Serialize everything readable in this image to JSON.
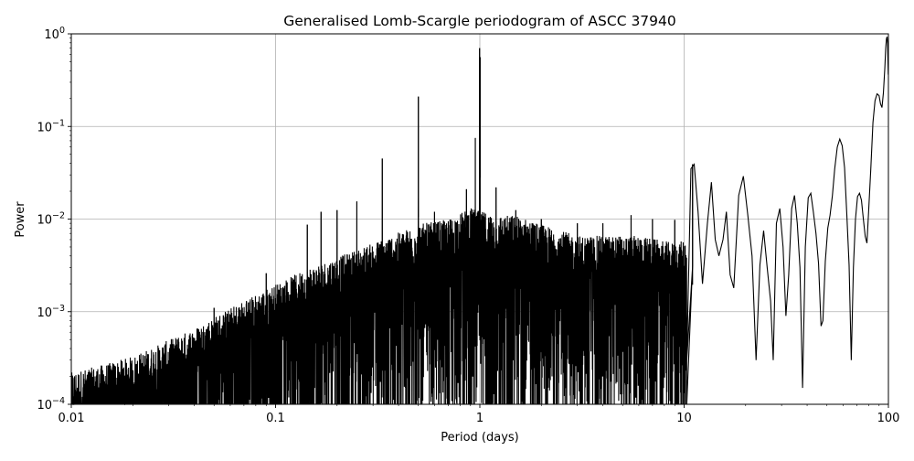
{
  "chart_data": {
    "type": "line",
    "title": "Generalised Lomb-Scargle periodogram of ASCC 37940",
    "xlabel": "Period (days)",
    "ylabel": "Power",
    "xscale": "log",
    "yscale": "log",
    "xlim": [
      0.01,
      100
    ],
    "ylim": [
      0.0001,
      1
    ],
    "grid": true,
    "x_ticks": [
      {
        "value": 0.01,
        "label": "0.01"
      },
      {
        "value": 0.1,
        "label": "0.1"
      },
      {
        "value": 1,
        "label": "1"
      },
      {
        "value": 10,
        "label": "10"
      },
      {
        "value": 100,
        "label": "100"
      }
    ],
    "y_ticks": [
      {
        "value": 0.0001,
        "base": "10",
        "exp": "−4"
      },
      {
        "value": 0.001,
        "base": "10",
        "exp": "−3"
      },
      {
        "value": 0.01,
        "base": "10",
        "exp": "−2"
      },
      {
        "value": 0.1,
        "base": "10",
        "exp": "−1"
      },
      {
        "value": 1,
        "base": "10",
        "exp": "0"
      }
    ],
    "line_color": "#000000",
    "envelope": [
      [
        0.01,
        0.0002
      ],
      [
        0.015,
        0.00025
      ],
      [
        0.02,
        0.0003
      ],
      [
        0.03,
        0.00045
      ],
      [
        0.04,
        0.0006
      ],
      [
        0.05,
        0.0008
      ],
      [
        0.07,
        0.0012
      ],
      [
        0.1,
        0.0018
      ],
      [
        0.15,
        0.0028
      ],
      [
        0.2,
        0.0035
      ],
      [
        0.3,
        0.005
      ],
      [
        0.5,
        0.008
      ],
      [
        0.7,
        0.009
      ],
      [
        0.9,
        0.012
      ],
      [
        1.2,
        0.01
      ],
      [
        1.5,
        0.01
      ],
      [
        2,
        0.008
      ],
      [
        3,
        0.006
      ],
      [
        4,
        0.006
      ],
      [
        6,
        0.006
      ],
      [
        9,
        0.005
      ],
      [
        12,
        0.006
      ],
      [
        20,
        0.005
      ]
    ],
    "peaks": [
      [
        0.0253,
        0.0002
      ],
      [
        0.0333,
        0.0005
      ],
      [
        0.0357,
        0.00052
      ],
      [
        0.045,
        0.0006
      ],
      [
        0.05,
        0.0011
      ],
      [
        0.058,
        0.00095
      ],
      [
        0.066,
        0.00108
      ],
      [
        0.072,
        0.0013
      ],
      [
        0.08,
        0.0011
      ],
      [
        0.0833,
        0.0012
      ],
      [
        0.09,
        0.0026
      ],
      [
        0.1,
        0.0014
      ],
      [
        0.111,
        0.0015
      ],
      [
        0.125,
        0.0018
      ],
      [
        0.143,
        0.0087
      ],
      [
        0.167,
        0.012
      ],
      [
        0.2,
        0.0125
      ],
      [
        0.25,
        0.0155
      ],
      [
        0.333,
        0.045
      ],
      [
        0.5,
        0.21
      ],
      [
        0.6,
        0.012
      ],
      [
        0.86,
        0.021
      ],
      [
        0.95,
        0.075
      ],
      [
        0.997,
        0.7
      ],
      [
        1.0,
        0.33
      ],
      [
        1.003,
        0.56
      ],
      [
        1.2,
        0.022
      ],
      [
        1.5,
        0.0125
      ],
      [
        2,
        0.01
      ],
      [
        3,
        0.009
      ],
      [
        4,
        0.009
      ],
      [
        5.5,
        0.011
      ],
      [
        7,
        0.01
      ],
      [
        9,
        0.0098
      ],
      [
        11,
        0.039
      ]
    ],
    "long_period_curve": [
      [
        10.3,
        0.0003
      ],
      [
        10.8,
        0.035
      ],
      [
        11.2,
        0.039
      ],
      [
        11.7,
        0.012
      ],
      [
        12.3,
        0.002
      ],
      [
        13.0,
        0.009
      ],
      [
        13.6,
        0.025
      ],
      [
        14.2,
        0.006
      ],
      [
        14.8,
        0.004
      ],
      [
        15.5,
        0.006
      ],
      [
        16.1,
        0.012
      ],
      [
        16.8,
        0.0025
      ],
      [
        17.5,
        0.0018
      ],
      [
        18.5,
        0.018
      ],
      [
        19.5,
        0.029
      ],
      [
        20.5,
        0.011
      ],
      [
        21.5,
        0.004
      ],
      [
        22.5,
        0.0003
      ],
      [
        23.5,
        0.0032
      ],
      [
        24.5,
        0.0075
      ],
      [
        25.5,
        0.003
      ],
      [
        26.5,
        0.0013
      ],
      [
        27.3,
        0.0003
      ],
      [
        28.3,
        0.009
      ],
      [
        29.4,
        0.013
      ],
      [
        30.5,
        0.005
      ],
      [
        31.5,
        0.0009
      ],
      [
        32.5,
        0.0025
      ],
      [
        33.6,
        0.013
      ],
      [
        34.7,
        0.018
      ],
      [
        35.8,
        0.009
      ],
      [
        36.9,
        0.003
      ],
      [
        38.0,
        0.00015
      ],
      [
        39.2,
        0.005
      ],
      [
        40.5,
        0.017
      ],
      [
        41.7,
        0.019
      ],
      [
        42.9,
        0.012
      ],
      [
        44.2,
        0.007
      ],
      [
        45.5,
        0.0033
      ],
      [
        46.8,
        0.0007
      ],
      [
        47.8,
        0.0008
      ],
      [
        49.1,
        0.0035
      ],
      [
        50.5,
        0.008
      ],
      [
        51.8,
        0.011
      ],
      [
        53.2,
        0.018
      ],
      [
        54.6,
        0.035
      ],
      [
        56.2,
        0.06
      ],
      [
        57.8,
        0.073
      ],
      [
        59.4,
        0.062
      ],
      [
        61.0,
        0.036
      ],
      [
        62.6,
        0.011
      ],
      [
        64.2,
        0.0032
      ],
      [
        65.8,
        0.0003
      ],
      [
        67.4,
        0.003
      ],
      [
        69.0,
        0.01
      ],
      [
        70.6,
        0.0175
      ],
      [
        72.2,
        0.019
      ],
      [
        73.8,
        0.016
      ],
      [
        75.4,
        0.01
      ],
      [
        77.0,
        0.0065
      ],
      [
        78.5,
        0.0055
      ],
      [
        80.0,
        0.012
      ],
      [
        82.0,
        0.035
      ],
      [
        84.0,
        0.11
      ],
      [
        86.0,
        0.19
      ],
      [
        88.0,
        0.225
      ],
      [
        90.0,
        0.215
      ],
      [
        91.5,
        0.175
      ],
      [
        93.0,
        0.16
      ],
      [
        94.5,
        0.23
      ],
      [
        96.0,
        0.42
      ],
      [
        97.0,
        0.7
      ],
      [
        97.8,
        0.88
      ],
      [
        98.5,
        0.93
      ],
      [
        99.1,
        0.78
      ],
      [
        99.5,
        0.5
      ],
      [
        99.8,
        0.37
      ],
      [
        100.0,
        0.36
      ]
    ]
  }
}
